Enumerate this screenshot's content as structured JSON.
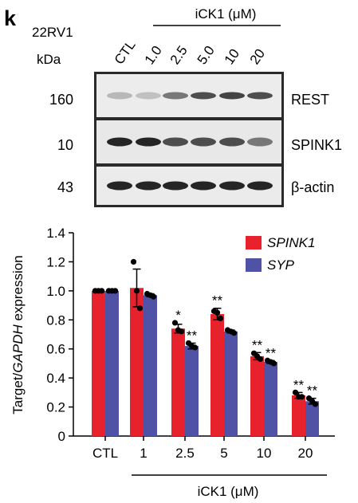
{
  "panel": {
    "letter": "k",
    "cell_line": "22RV1",
    "treatment_label": "iCK1 (μM)",
    "kda_label": "kDa",
    "lanes": [
      "CTL",
      "1.0",
      "2.5",
      "5.0",
      "10",
      "20"
    ],
    "blots": [
      {
        "protein": "REST",
        "kda": "160"
      },
      {
        "protein": "SPINK1",
        "kda": "10"
      },
      {
        "protein": "β-actin",
        "kda": "43"
      }
    ]
  },
  "chart_data": {
    "type": "bar",
    "categories": [
      "CTL",
      "1",
      "2.5",
      "5",
      "10",
      "20"
    ],
    "xlabel": "iCK1 (μM)",
    "ylabel_parts": [
      "Target/",
      "GAPDH",
      " expression"
    ],
    "ylim": [
      0,
      1.4
    ],
    "yticks": [
      "0",
      "0.2",
      "0.4",
      "0.6",
      "0.8",
      "1.0",
      "1.2",
      "1.4"
    ],
    "grid": false,
    "legend_position": "top-right",
    "series": [
      {
        "name": "SPINK1",
        "color": "#e8222d",
        "values": [
          1.0,
          1.02,
          0.74,
          0.84,
          0.55,
          0.28
        ],
        "errors": [
          0.0,
          0.13,
          0.03,
          0.04,
          0.025,
          0.02
        ],
        "points": [
          [
            1.0,
            1.0,
            1.0
          ],
          [
            1.2,
            1.0,
            0.88
          ],
          [
            0.78,
            0.73,
            0.72
          ],
          [
            0.86,
            0.85,
            0.81
          ],
          [
            0.57,
            0.55,
            0.53
          ],
          [
            0.3,
            0.27,
            0.27
          ]
        ],
        "significance": [
          "",
          "",
          "*",
          "**",
          "**",
          "**"
        ]
      },
      {
        "name": "SYP",
        "color": "#5052a6",
        "values": [
          1.0,
          0.97,
          0.62,
          0.72,
          0.51,
          0.24
        ],
        "errors": [
          0.0,
          0.01,
          0.02,
          0.01,
          0.01,
          0.02
        ],
        "points": [
          [
            1.0,
            1.0,
            1.0
          ],
          [
            0.98,
            0.97,
            0.96
          ],
          [
            0.64,
            0.62,
            0.61
          ],
          [
            0.73,
            0.72,
            0.71
          ],
          [
            0.52,
            0.51,
            0.5
          ],
          [
            0.26,
            0.24,
            0.22
          ]
        ],
        "significance": [
          "",
          "",
          "**",
          "",
          "**",
          "**"
        ]
      }
    ]
  }
}
